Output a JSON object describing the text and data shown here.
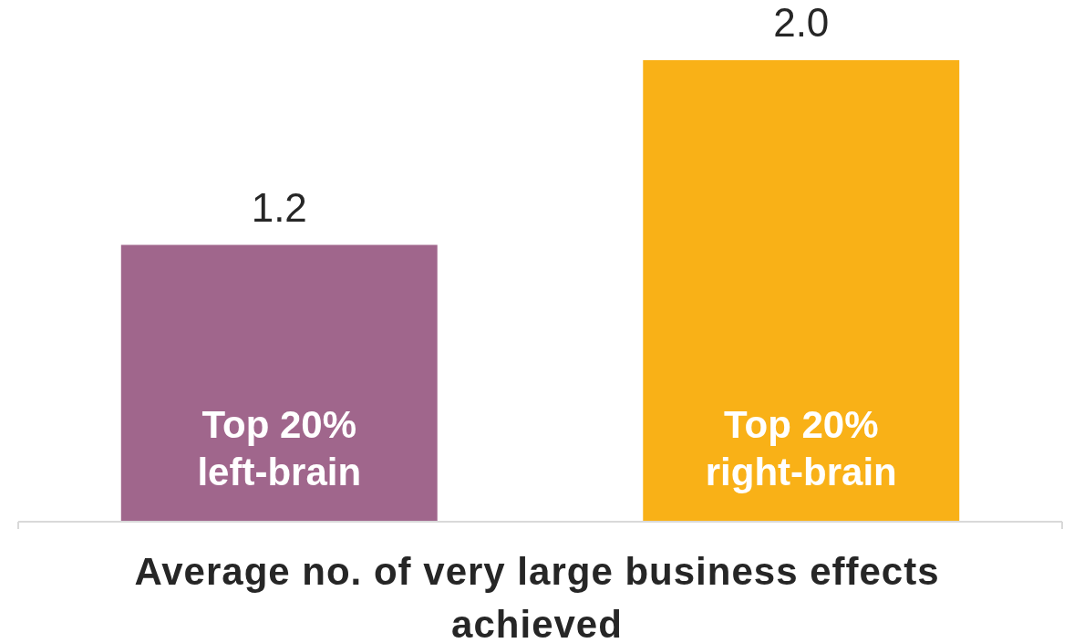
{
  "chart_data": {
    "type": "bar",
    "xlabel": "Average no. of very large business effects achieved",
    "categories": [
      "Top 20% left-brain",
      "Top 20% right-brain"
    ],
    "values": [
      1.2,
      2.0
    ],
    "colors": [
      "#a0668c",
      "#f9b117"
    ],
    "value_labels": [
      "1.2",
      "2.0"
    ]
  }
}
